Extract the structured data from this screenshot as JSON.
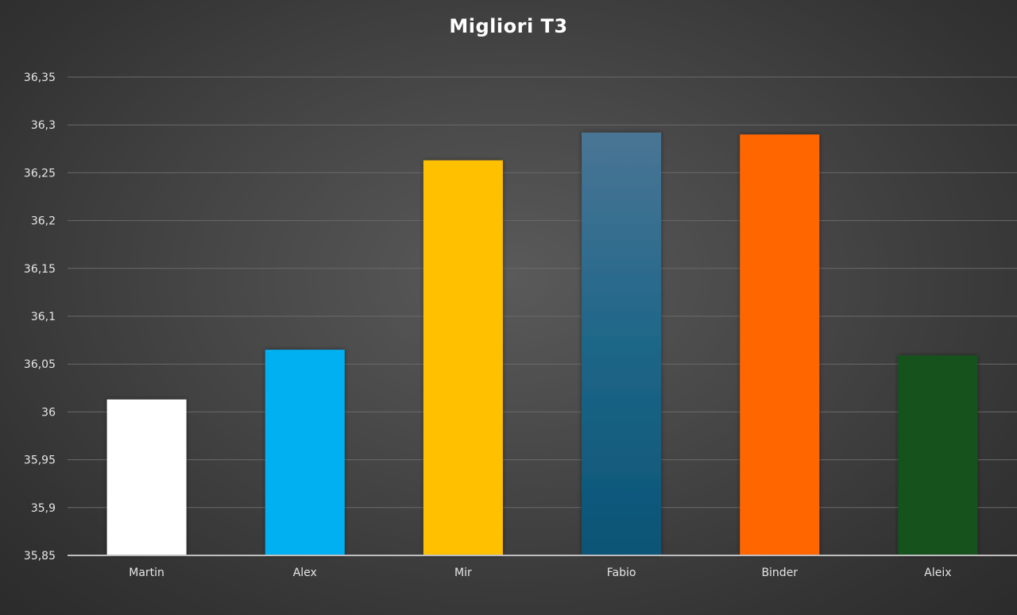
{
  "chart_data": {
    "type": "bar",
    "title": "Migliori T3",
    "xlabel": "",
    "ylabel": "",
    "categories": [
      "Martin",
      "Alex",
      "Mir",
      "Fabio",
      "Binder",
      "Aleix"
    ],
    "values": [
      36.013,
      36.065,
      36.263,
      36.292,
      36.29,
      36.059
    ],
    "ylim": [
      35.85,
      36.35
    ],
    "yticks": [
      "35,85",
      "35,9",
      "35,95",
      "36",
      "36,05",
      "36,1",
      "36,15",
      "36,2",
      "36,25",
      "36,3",
      "36,35"
    ],
    "grid": true,
    "legend": "none",
    "colors": [
      "#ffffff",
      "#00b0f0",
      "#ffc000",
      "#1f6f9a",
      "#ff6600",
      "#17531e"
    ]
  }
}
